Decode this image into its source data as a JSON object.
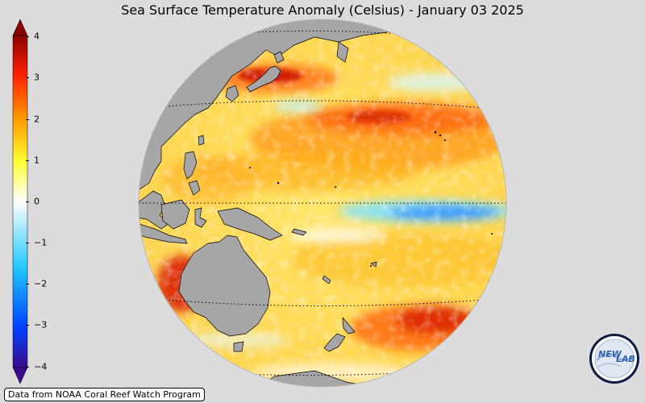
{
  "title": "Sea Surface Temperature Anomaly (Celsius) - January 03 2025",
  "colorbar": {
    "ticks": [
      "4",
      "3",
      "2",
      "1",
      "0",
      "−1",
      "−2",
      "−3",
      "−4"
    ],
    "min": -4,
    "max": 4,
    "extend": "both",
    "colors": [
      "#3a0a8c",
      "#0040ff",
      "#20c8ff",
      "#ffffff",
      "#ffff33",
      "#ff9900",
      "#ff2200",
      "#8a0000"
    ]
  },
  "credit": "Data from NOAA Coral Reef Watch Program",
  "logo": {
    "text_left": "NEW",
    "text_right": "LAB"
  },
  "map": {
    "projection": "orthographic",
    "center": "western Pacific / equator",
    "land_color": "#a6a6a6",
    "ocean_base_color": "#ffe27a"
  }
}
